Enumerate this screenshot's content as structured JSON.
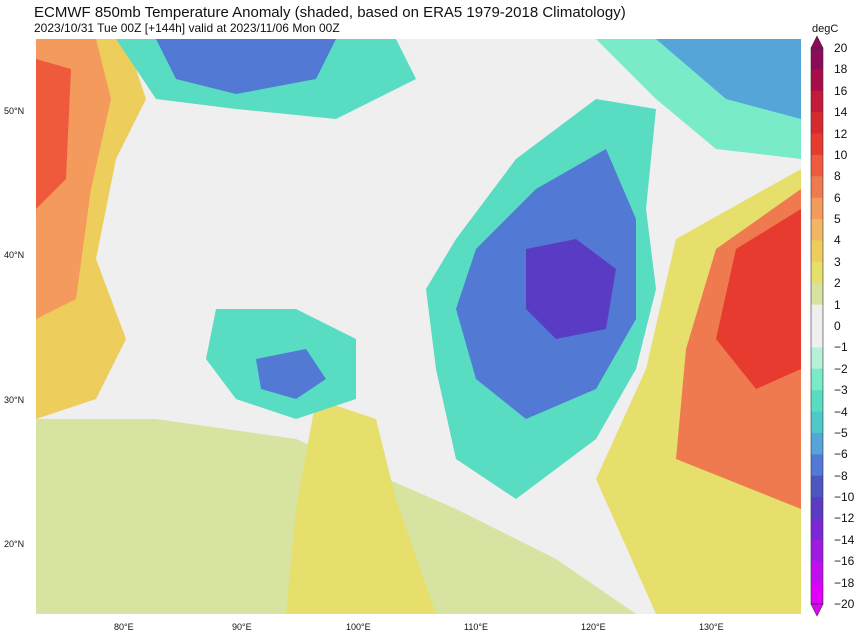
{
  "title": "ECMWF 850mb Temperature Anomaly (shaded, based on ERA5 1979-2018 Climatology)",
  "subtitle": "2023/10/31 Tue 00Z [+144h] valid at 2023/11/06 Mon 00Z",
  "lat_labels": [
    "50°N",
    "40°N",
    "30°N",
    "20°N"
  ],
  "lon_labels": [
    "80°E",
    "90°E",
    "100°E",
    "110°E",
    "120°E",
    "130°E"
  ],
  "colorbar": {
    "unit": "degC",
    "levels": [
      "20",
      "18",
      "16",
      "14",
      "12",
      "10",
      "8",
      "6",
      "5",
      "4",
      "3",
      "2",
      "1",
      "0",
      "−1",
      "−2",
      "−3",
      "−4",
      "−5",
      "−6",
      "−8",
      "−10",
      "−12",
      "−14",
      "−16",
      "−18",
      "−20"
    ],
    "colors": [
      "#8b0a5a",
      "#a80d4a",
      "#c31a3c",
      "#d62a2f",
      "#e63b2e",
      "#ef5a3c",
      "#f07a50",
      "#f39a5c",
      "#f2b662",
      "#edcd5c",
      "#e6df6c",
      "#d7e3a0",
      "#efefef",
      "#efefef",
      "#b5f0d8",
      "#7aebc9",
      "#58dcc2",
      "#4fc8cb",
      "#55a5d8",
      "#527ad4",
      "#4d55c0",
      "#5a3cc4",
      "#7a28d6",
      "#a11ae4",
      "#c20df0",
      "#e000fb"
    ]
  }
}
